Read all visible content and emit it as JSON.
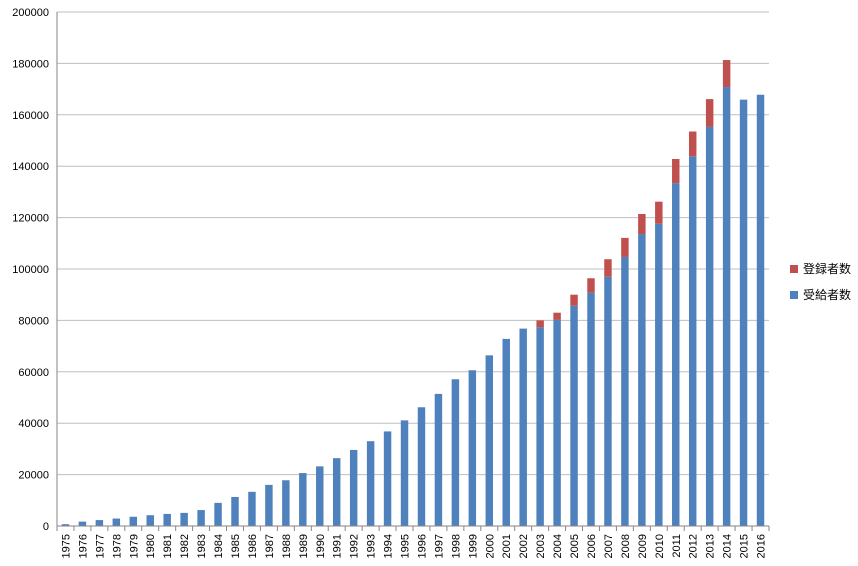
{
  "chart_data": {
    "type": "bar",
    "stacked": true,
    "title": "",
    "xlabel": "",
    "ylabel": "",
    "ylim": [
      0,
      200000
    ],
    "yticks": [
      0,
      20000,
      40000,
      60000,
      80000,
      100000,
      120000,
      140000,
      160000,
      180000,
      200000
    ],
    "grid": true,
    "legend_position": "right",
    "categories": [
      "1975",
      "1976",
      "1977",
      "1978",
      "1979",
      "1980",
      "1981",
      "1982",
      "1983",
      "1984",
      "1985",
      "1986",
      "1987",
      "1988",
      "1989",
      "1990",
      "1991",
      "1992",
      "1993",
      "1994",
      "1995",
      "1996",
      "1997",
      "1998",
      "1999",
      "2000",
      "2001",
      "2002",
      "2003",
      "2004",
      "2005",
      "2006",
      "2007",
      "2008",
      "2009",
      "2010",
      "2011",
      "2012",
      "2013",
      "2014",
      "2015",
      "2016"
    ],
    "series": [
      {
        "name": "受給者数",
        "color": "#4f81bd",
        "values": [
          700,
          1700,
          2300,
          2900,
          3600,
          4200,
          4700,
          5100,
          6200,
          9000,
          11300,
          13300,
          16000,
          17800,
          20600,
          23200,
          26400,
          29600,
          33000,
          36800,
          41100,
          46200,
          51400,
          57100,
          60600,
          66400,
          72800,
          76800,
          77300,
          80200,
          85700,
          90800,
          97000,
          104700,
          113600,
          117600,
          133400,
          143900,
          155300,
          170800,
          165900,
          167800
        ]
      },
      {
        "name": "登録者数",
        "color": "#c0504d",
        "values": [
          0,
          0,
          0,
          0,
          0,
          0,
          0,
          0,
          0,
          0,
          0,
          0,
          0,
          0,
          0,
          0,
          0,
          0,
          0,
          0,
          0,
          0,
          0,
          0,
          0,
          0,
          0,
          0,
          2700,
          2800,
          4300,
          5600,
          6800,
          7400,
          7800,
          8600,
          9400,
          9600,
          10800,
          10500,
          0,
          0
        ]
      }
    ],
    "legend_order": [
      "登録者数",
      "受給者数"
    ]
  }
}
